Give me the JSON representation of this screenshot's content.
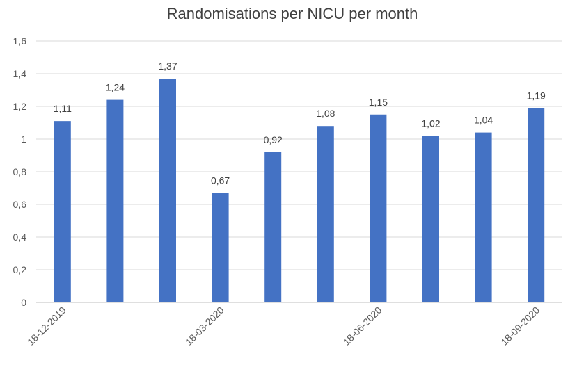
{
  "chart_data": {
    "type": "bar",
    "title": "Randomisations per NICU per month",
    "xlabel": "",
    "ylabel": "",
    "categories": [
      "18-12-2019",
      "",
      "",
      "18-03-2020",
      "",
      "",
      "18-06-2020",
      "",
      "",
      "18-09-2020"
    ],
    "values": [
      1.11,
      1.24,
      1.37,
      0.67,
      0.92,
      1.08,
      1.15,
      1.02,
      1.04,
      1.19
    ],
    "data_labels": [
      "1,11",
      "1,24",
      "1,37",
      "0,67",
      "0,92",
      "1,08",
      "1,15",
      "1,02",
      "1,04",
      "1,19"
    ],
    "ylim": [
      0,
      1.6
    ],
    "y_ticks": [
      0,
      0.2,
      0.4,
      0.6,
      0.8,
      1,
      1.2,
      1.4,
      1.6
    ],
    "y_tick_labels": [
      "0",
      "0,2",
      "0,4",
      "0,6",
      "0,8",
      "1",
      "1,2",
      "1,4",
      "1,6"
    ],
    "grid": true,
    "legend": "none",
    "colors": {
      "bar": "#4472C4",
      "grid": "#d9d9d9",
      "axis": "#bfbfbf"
    }
  }
}
